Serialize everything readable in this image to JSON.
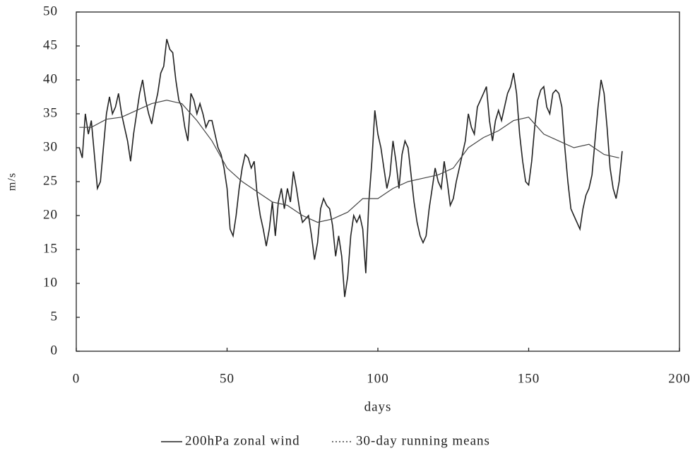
{
  "chart_data": {
    "type": "line",
    "xlabel": "days",
    "ylabel": "m/s",
    "xlim": [
      0,
      200
    ],
    "xticks": [
      0,
      50,
      100,
      150,
      200
    ],
    "ylim": [
      0,
      50
    ],
    "yticks": [
      0,
      5,
      10,
      15,
      20,
      25,
      30,
      35,
      40,
      45,
      50
    ],
    "series": [
      {
        "name": "200hPa zonal wind",
        "color": "#222222",
        "style": "solid",
        "x": [
          1,
          2,
          3,
          4,
          5,
          6,
          7,
          8,
          9,
          10,
          11,
          12,
          13,
          14,
          15,
          16,
          17,
          18,
          19,
          20,
          21,
          22,
          23,
          24,
          25,
          26,
          27,
          28,
          29,
          30,
          31,
          32,
          33,
          34,
          35,
          36,
          37,
          38,
          39,
          40,
          41,
          42,
          43,
          44,
          45,
          46,
          47,
          48,
          49,
          50,
          51,
          52,
          53,
          54,
          55,
          56,
          57,
          58,
          59,
          60,
          61,
          62,
          63,
          64,
          65,
          66,
          67,
          68,
          69,
          70,
          71,
          72,
          73,
          74,
          75,
          76,
          77,
          78,
          79,
          80,
          81,
          82,
          83,
          84,
          85,
          86,
          87,
          88,
          89,
          90,
          91,
          92,
          93,
          94,
          95,
          96,
          97,
          98,
          99,
          100,
          101,
          102,
          103,
          104,
          105,
          106,
          107,
          108,
          109,
          110,
          111,
          112,
          113,
          114,
          115,
          116,
          117,
          118,
          119,
          120,
          121,
          122,
          123,
          124,
          125,
          126,
          127,
          128,
          129,
          130,
          131,
          132,
          133,
          134,
          135,
          136,
          137,
          138,
          139,
          140,
          141,
          142,
          143,
          144,
          145,
          146,
          147,
          148,
          149,
          150,
          151,
          152,
          153,
          154,
          155,
          156,
          157,
          158,
          159,
          160,
          161,
          162,
          163,
          164,
          165,
          166,
          167,
          168,
          169,
          170,
          171,
          172,
          173,
          174,
          175,
          176,
          177,
          178,
          179,
          180,
          181
        ],
        "values": [
          30,
          28.5,
          35,
          32,
          34,
          29,
          24,
          25,
          30,
          35,
          37.5,
          35,
          36,
          38,
          35,
          33,
          31,
          28,
          32,
          35,
          38,
          40,
          37,
          35,
          33.5,
          36,
          38,
          41,
          42,
          46,
          44.5,
          44,
          40,
          37,
          36,
          33,
          31,
          38,
          37,
          35,
          36.5,
          35,
          33,
          34,
          34,
          32,
          30,
          29,
          27,
          24,
          18,
          17,
          20,
          24,
          27,
          29,
          28.5,
          27,
          28,
          23,
          20,
          18,
          15.5,
          18,
          22,
          17,
          22,
          24,
          21,
          24,
          22,
          26.5,
          24,
          21,
          19,
          19.5,
          20,
          17,
          13.5,
          16,
          21,
          22.5,
          21.5,
          21,
          18.5,
          14,
          17,
          14,
          8,
          11,
          17,
          20,
          19,
          20,
          18,
          11.5,
          22,
          28,
          35.5,
          32,
          30,
          27,
          24,
          26,
          31,
          28,
          24,
          29,
          31,
          30,
          26,
          22,
          19,
          17,
          16,
          17,
          21,
          24,
          27,
          25,
          24,
          28,
          25,
          21.5,
          22.5,
          25,
          27,
          29,
          31,
          35,
          33,
          32,
          36,
          37,
          38,
          39,
          34,
          31,
          34,
          35.5,
          34,
          36,
          38,
          39,
          41,
          38,
          32,
          28,
          25,
          24.5,
          28,
          33,
          37,
          38.5,
          39,
          36,
          35,
          38,
          38.5,
          38,
          36,
          30,
          25,
          21,
          20,
          19,
          18,
          21,
          23,
          24,
          26,
          31,
          36,
          40,
          38,
          33,
          27,
          24,
          22.5,
          25,
          29.5
        ]
      },
      {
        "name": "30-day running means",
        "color": "#444444",
        "style": "dotted",
        "x": [
          1,
          5,
          10,
          15,
          20,
          25,
          30,
          35,
          40,
          45,
          50,
          55,
          60,
          65,
          70,
          75,
          80,
          85,
          90,
          95,
          100,
          105,
          110,
          115,
          120,
          125,
          130,
          135,
          140,
          145,
          150,
          155,
          160,
          165,
          170,
          175,
          180
        ],
        "values": [
          33,
          33,
          34.2,
          34.5,
          35.5,
          36.5,
          37,
          36.5,
          34,
          31,
          27,
          25,
          23.5,
          22,
          21.5,
          20,
          19,
          19.5,
          20.5,
          22.5,
          22.5,
          24,
          25,
          25.5,
          26,
          27,
          30,
          31.5,
          32.5,
          34,
          34.5,
          32,
          31,
          30,
          30.5,
          29,
          28.5
        ]
      }
    ]
  }
}
